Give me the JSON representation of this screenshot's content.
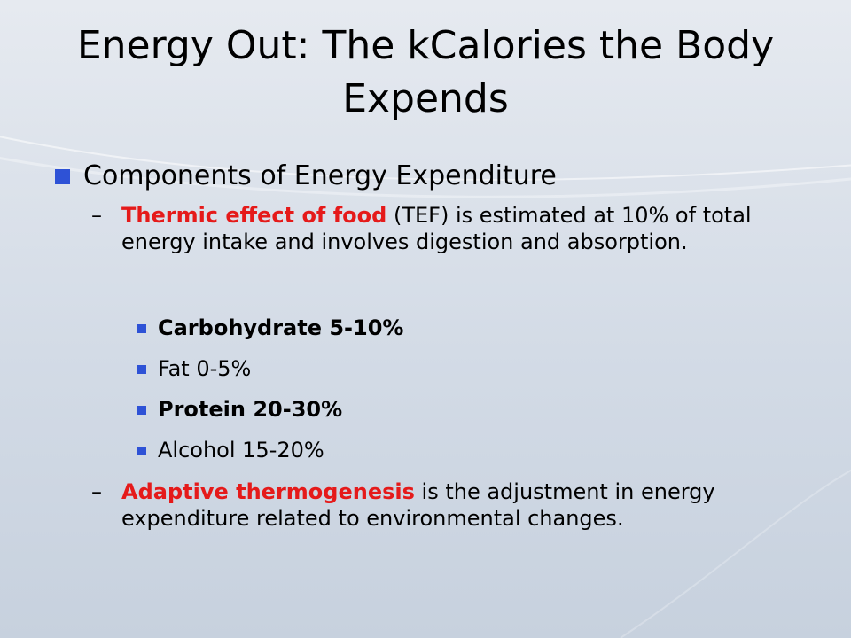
{
  "slide": {
    "title": "Energy Out: The kCalories the Body Expends",
    "heading_bullet": "Components of Energy Expenditure",
    "tef": {
      "term": "Thermic effect of food",
      "rest": " (TEF) is estimated at 10% of total energy intake and involves digestion and absorption."
    },
    "sub_items": [
      {
        "label": "Carbohydrate 5-10%"
      },
      {
        "label": "Fat 0-5%"
      },
      {
        "label": "Protein 20-30%"
      },
      {
        "label": "Alcohol 15-20%"
      }
    ],
    "adaptive": {
      "term": "Adaptive thermogenesis",
      "rest": " is the adjustment in energy expenditure related to environmental changes."
    },
    "dash_glyph": "–",
    "colors": {
      "accent_red": "#e51a1a",
      "bullet_blue": "#2e52d6"
    }
  }
}
